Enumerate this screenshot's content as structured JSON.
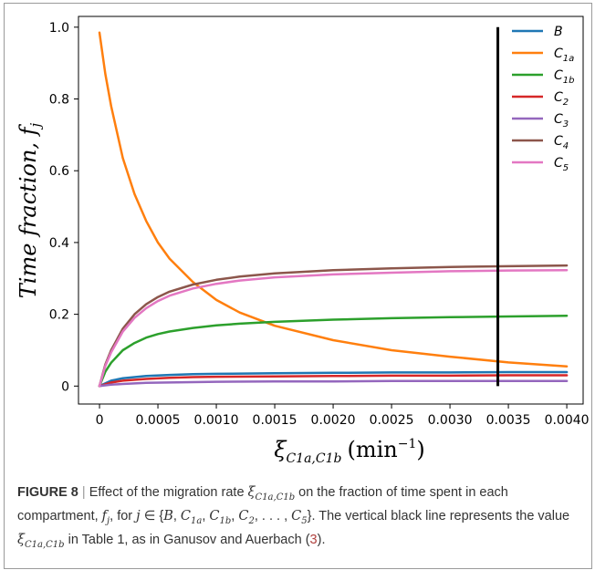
{
  "chart_data": {
    "type": "line",
    "xlabel": "ξ",
    "xlabel_sub": "C1a,C1b",
    "xlabel_unit": "(min",
    "xlabel_exp": "−1",
    "xlabel_close": ")",
    "ylabel": "Time fraction, ",
    "ylabel_var": "f",
    "ylabel_sub": "j",
    "xlim": [
      -0.00018,
      0.00414
    ],
    "ylim": [
      -0.05,
      1.03
    ],
    "x_ticks": [
      0,
      0.0005,
      0.001,
      0.0015,
      0.002,
      0.0025,
      0.003,
      0.0035,
      0.004
    ],
    "x_tick_labels": [
      "0",
      "0.0005",
      "0.0010",
      "0.0015",
      "0.0020",
      "0.0025",
      "0.0030",
      "0.0035",
      "0.0040"
    ],
    "y_ticks": [
      0,
      0.2,
      0.4,
      0.6,
      0.8,
      1.0
    ],
    "y_tick_labels": [
      "0",
      "0.2",
      "0.4",
      "0.6",
      "0.8",
      "1.0"
    ],
    "grid": false,
    "legend_position": "top-right",
    "vertical_line": {
      "x": 0.00341,
      "y_range": [
        0,
        1.0
      ],
      "color": "#000000"
    },
    "series": [
      {
        "name": "B",
        "base": "B",
        "sub": "",
        "color": "#1f77b4",
        "x": [
          0,
          0.0001,
          0.0002,
          0.0004,
          0.0006,
          0.0008,
          0.001,
          0.0015,
          0.002,
          0.0025,
          0.003,
          0.0035,
          0.004
        ],
        "y": [
          0,
          0.015,
          0.022,
          0.028,
          0.031,
          0.033,
          0.034,
          0.036,
          0.037,
          0.038,
          0.038,
          0.039,
          0.039
        ]
      },
      {
        "name": "C1a",
        "base": "C",
        "sub": "1a",
        "color": "#ff7f0e",
        "x": [
          0,
          5e-05,
          0.0001,
          0.0002,
          0.0003,
          0.0004,
          0.0005,
          0.0006,
          0.0008,
          0.001,
          0.0012,
          0.0015,
          0.002,
          0.0025,
          0.003,
          0.0035,
          0.004
        ],
        "y": [
          0.985,
          0.87,
          0.78,
          0.635,
          0.535,
          0.46,
          0.4,
          0.355,
          0.29,
          0.24,
          0.205,
          0.168,
          0.128,
          0.1,
          0.082,
          0.066,
          0.055
        ]
      },
      {
        "name": "C1b",
        "base": "C",
        "sub": "1b",
        "color": "#2ca02c",
        "x": [
          0,
          5e-05,
          0.0001,
          0.0002,
          0.0003,
          0.0004,
          0.0005,
          0.0006,
          0.0008,
          0.001,
          0.0012,
          0.0015,
          0.002,
          0.0025,
          0.003,
          0.0035,
          0.004
        ],
        "y": [
          0,
          0.04,
          0.065,
          0.1,
          0.12,
          0.135,
          0.145,
          0.152,
          0.162,
          0.169,
          0.174,
          0.179,
          0.185,
          0.189,
          0.192,
          0.194,
          0.196
        ]
      },
      {
        "name": "C2",
        "base": "C",
        "sub": "2",
        "color": "#d62728",
        "x": [
          0,
          0.0001,
          0.0002,
          0.0004,
          0.0006,
          0.0008,
          0.001,
          0.0015,
          0.002,
          0.0025,
          0.003,
          0.0035,
          0.004
        ],
        "y": [
          0,
          0.01,
          0.015,
          0.02,
          0.023,
          0.025,
          0.026,
          0.027,
          0.028,
          0.029,
          0.029,
          0.03,
          0.03
        ]
      },
      {
        "name": "C3",
        "base": "C",
        "sub": "3",
        "color": "#9467bd",
        "x": [
          0,
          0.0001,
          0.0002,
          0.0004,
          0.0006,
          0.0008,
          0.001,
          0.0015,
          0.002,
          0.0025,
          0.003,
          0.0035,
          0.004
        ],
        "y": [
          0,
          0.004,
          0.006,
          0.009,
          0.01,
          0.011,
          0.012,
          0.013,
          0.013,
          0.014,
          0.014,
          0.014,
          0.014
        ]
      },
      {
        "name": "C4",
        "base": "C",
        "sub": "4",
        "color": "#8c564b",
        "x": [
          0,
          5e-05,
          0.0001,
          0.0002,
          0.0003,
          0.0004,
          0.0005,
          0.0006,
          0.0008,
          0.001,
          0.0012,
          0.0015,
          0.002,
          0.0025,
          0.003,
          0.0035,
          0.004
        ],
        "y": [
          0,
          0.06,
          0.1,
          0.16,
          0.2,
          0.228,
          0.248,
          0.263,
          0.283,
          0.296,
          0.305,
          0.314,
          0.323,
          0.328,
          0.332,
          0.334,
          0.336
        ]
      },
      {
        "name": "C5",
        "base": "C",
        "sub": "5",
        "color": "#e377c2",
        "x": [
          0,
          5e-05,
          0.0001,
          0.0002,
          0.0003,
          0.0004,
          0.0005,
          0.0006,
          0.0008,
          0.001,
          0.0012,
          0.0015,
          0.002,
          0.0025,
          0.003,
          0.0035,
          0.004
        ],
        "y": [
          0,
          0.056,
          0.094,
          0.152,
          0.19,
          0.217,
          0.237,
          0.252,
          0.272,
          0.285,
          0.294,
          0.303,
          0.311,
          0.316,
          0.32,
          0.322,
          0.323
        ]
      }
    ]
  },
  "caption": {
    "label": "FIGURE 8",
    "separator": "|",
    "p1": " Effect of the migration rate ",
    "xi1": "ξ",
    "xi1_sub": "C1a,C1b",
    "p2": " on the fraction of time spent in each compartment, ",
    "fj": "f",
    "fj_sub": "j",
    "p3": ", for ",
    "jvar": "j",
    "p4": " ∈ {",
    "set_b": "B",
    "set_c1a": "C",
    "set_c1a_sub": "1a",
    "set_c1b": "C",
    "set_c1b_sub": "1b",
    "set_c2": "C",
    "set_c2_sub": "2",
    "set_dots": ", . . . , ",
    "set_c5": "C",
    "set_c5_sub": "5",
    "p5": "}. The vertical black line represents the value ",
    "xi2": "ξ",
    "xi2_sub": "C1a,C1b",
    "p6": " in Table 1, as in Ganusov and Auerbach (",
    "ref": "3",
    "p7": ")."
  }
}
